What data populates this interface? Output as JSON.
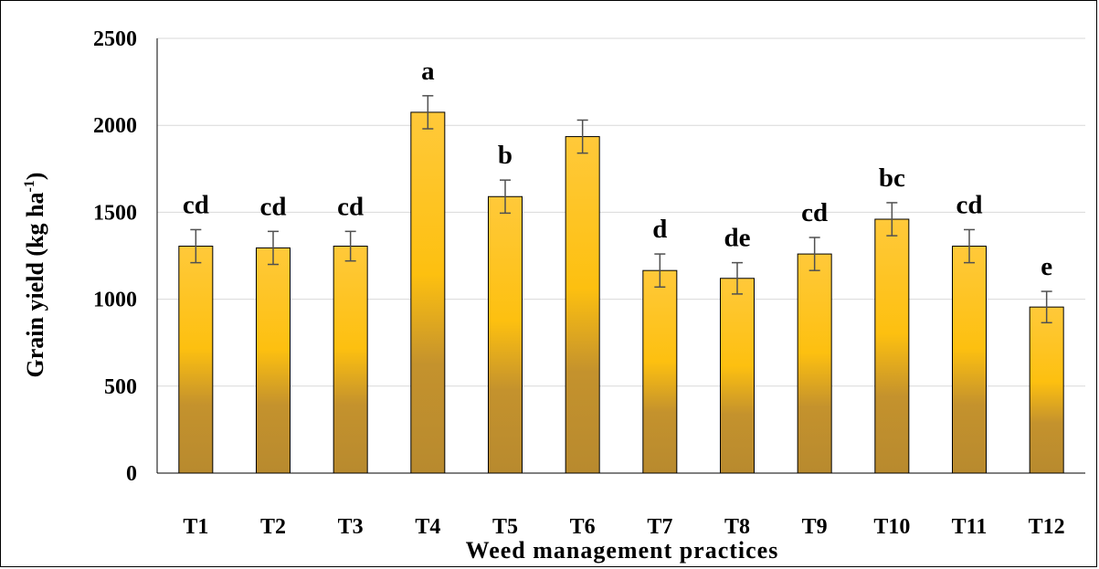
{
  "chart_data": {
    "type": "bar",
    "categories": [
      "T1",
      "T2",
      "T3",
      "T4",
      "T5",
      "T6",
      "T7",
      "T8",
      "T9",
      "T10",
      "T11",
      "T12"
    ],
    "values": [
      1305,
      1295,
      1305,
      2075,
      1590,
      1935,
      1165,
      1120,
      1260,
      1460,
      1305,
      955
    ],
    "error": [
      95,
      95,
      85,
      95,
      95,
      95,
      95,
      90,
      95,
      95,
      95,
      90
    ],
    "significance_letters": [
      "cd",
      "cd",
      "cd",
      "a",
      "b",
      "",
      "d",
      "de",
      "cd",
      "bc",
      "cd",
      "e"
    ],
    "title": "",
    "xlabel": "Weed management practices",
    "ylabel": "Grain yield (kg ha",
    "ylabel_superscript": "-1",
    "ylabel_close": ")",
    "ylim": [
      0,
      2500
    ],
    "yticks": [
      0,
      500,
      1000,
      1500,
      2000,
      2500
    ],
    "grid": true,
    "legend": "none",
    "colors": {
      "bar_top": "#FFC93A",
      "bar_mid": "#FDC010",
      "bar_low": "#C4922D",
      "bar_bottom": "#B88A2E",
      "bar_stroke": "#000000",
      "error_bar": "#505050",
      "grid": "#d9d9d9"
    }
  }
}
